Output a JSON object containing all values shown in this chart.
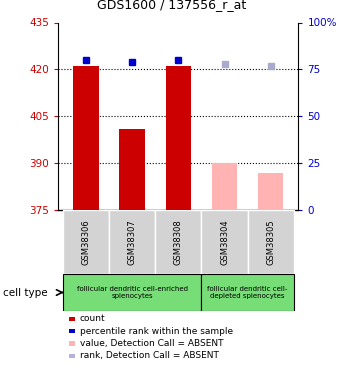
{
  "title": "GDS1600 / 137556_r_at",
  "samples": [
    "GSM38306",
    "GSM38307",
    "GSM38308",
    "GSM38304",
    "GSM38305"
  ],
  "bar_values": [
    421,
    401,
    421,
    390,
    387
  ],
  "bar_colors": [
    "#cc0000",
    "#cc0000",
    "#cc0000",
    "#ffb3b3",
    "#ffb3b3"
  ],
  "rank_values": [
    80,
    79,
    80,
    78,
    77
  ],
  "rank_colors": [
    "#0000cc",
    "#0000cc",
    "#0000cc",
    "#aaaacc",
    "#aaaacc"
  ],
  "ylim_left": [
    375,
    435
  ],
  "ylim_right": [
    0,
    100
  ],
  "yticks_left": [
    375,
    390,
    405,
    420,
    435
  ],
  "yticks_right": [
    0,
    25,
    50,
    75,
    100
  ],
  "ytick_labels_left": [
    "375",
    "390",
    "405",
    "420",
    "435"
  ],
  "ytick_labels_right": [
    "0",
    "25",
    "50",
    "75",
    "100%"
  ],
  "hlines": [
    390,
    405,
    420
  ],
  "bar_width": 0.55,
  "legend_items": [
    {
      "color": "#cc0000",
      "label": "count"
    },
    {
      "color": "#0000cc",
      "label": "percentile rank within the sample"
    },
    {
      "color": "#ffb3b3",
      "label": "value, Detection Call = ABSENT"
    },
    {
      "color": "#b3b3dd",
      "label": "rank, Detection Call = ABSENT"
    }
  ],
  "cell_type_label": "cell type",
  "left_axis_color": "#cc0000",
  "right_axis_color": "#0000cc",
  "plot_bg_color": "#ffffff",
  "sample_bg_color": "#d3d3d3",
  "cell_type_bg": "#77dd77"
}
